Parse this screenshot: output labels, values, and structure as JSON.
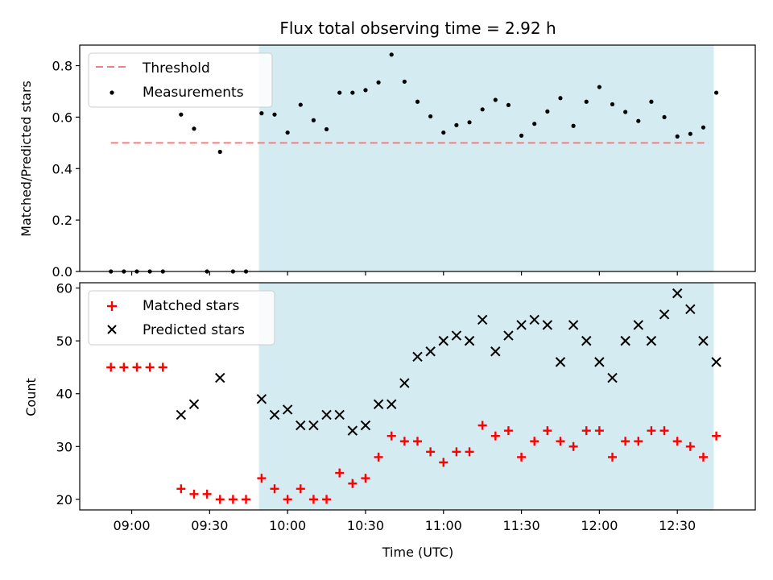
{
  "chart_data": [
    {
      "type": "scatter",
      "title": "Flux total observing time = 2.92 h",
      "xlabel": "",
      "ylabel": "Matched/Predicted stars",
      "ylim": [
        0,
        0.88
      ],
      "yticks": [
        "0.0",
        "0.2",
        "0.4",
        "0.6",
        "0.8"
      ],
      "shaded_interval": {
        "start": "09:49",
        "end": "12:44",
        "color": "#d4ebf1"
      },
      "threshold": {
        "name": "Threshold",
        "value": 0.5,
        "x_start": "08:52",
        "x_end": "12:42",
        "color": "#f08080"
      },
      "legend": {
        "position": "upper-left",
        "entries": [
          "Threshold",
          "Measurements"
        ]
      },
      "series": [
        {
          "name": "Measurements",
          "color": "#000000",
          "points": [
            [
              "08:52",
              0.0
            ],
            [
              "08:57",
              0.0
            ],
            [
              "09:02",
              0.0
            ],
            [
              "09:07",
              0.0
            ],
            [
              "09:12",
              0.0
            ],
            [
              "09:19",
              0.61
            ],
            [
              "09:24",
              0.555
            ],
            [
              "09:29",
              0.0
            ],
            [
              "09:34",
              0.465
            ],
            [
              "09:39",
              0.0
            ],
            [
              "09:44",
              0.0
            ],
            [
              "09:50",
              0.615
            ],
            [
              "09:55",
              0.61
            ],
            [
              "10:00",
              0.54
            ],
            [
              "10:05",
              0.648
            ],
            [
              "10:10",
              0.588
            ],
            [
              "10:15",
              0.553
            ],
            [
              "10:20",
              0.695
            ],
            [
              "10:25",
              0.695
            ],
            [
              "10:30",
              0.705
            ],
            [
              "10:35",
              0.735
            ],
            [
              "10:40",
              0.843
            ],
            [
              "10:45",
              0.738
            ],
            [
              "10:50",
              0.66
            ],
            [
              "10:55",
              0.603
            ],
            [
              "11:00",
              0.54
            ],
            [
              "11:05",
              0.569
            ],
            [
              "11:10",
              0.58
            ],
            [
              "11:15",
              0.63
            ],
            [
              "11:20",
              0.667
            ],
            [
              "11:25",
              0.647
            ],
            [
              "11:30",
              0.528
            ],
            [
              "11:35",
              0.574
            ],
            [
              "11:40",
              0.622
            ],
            [
              "11:45",
              0.674
            ],
            [
              "11:50",
              0.566
            ],
            [
              "11:55",
              0.66
            ],
            [
              "12:00",
              0.717
            ],
            [
              "12:05",
              0.65
            ],
            [
              "12:10",
              0.62
            ],
            [
              "12:15",
              0.585
            ],
            [
              "12:20",
              0.66
            ],
            [
              "12:25",
              0.6
            ],
            [
              "12:30",
              0.525
            ],
            [
              "12:35",
              0.535
            ],
            [
              "12:40",
              0.56
            ],
            [
              "12:45",
              0.695
            ]
          ]
        }
      ]
    },
    {
      "type": "scatter",
      "title": "",
      "xlabel": "Time (UTC)",
      "ylabel": "Count",
      "ylim": [
        18,
        61
      ],
      "yticks": [
        "20",
        "30",
        "40",
        "50",
        "60"
      ],
      "xlim": [
        "08:40",
        "13:00"
      ],
      "xticks": [
        "09:00",
        "09:30",
        "10:00",
        "10:30",
        "11:00",
        "11:30",
        "12:00",
        "12:30"
      ],
      "shaded_interval": {
        "start": "09:49",
        "end": "12:44",
        "color": "#d4ebf1"
      },
      "legend": {
        "position": "upper-left",
        "entries": [
          "Matched stars",
          "Predicted stars"
        ]
      },
      "series": [
        {
          "name": "Matched stars",
          "marker": "plus",
          "color": "#ff0000",
          "points": [
            [
              "08:52",
              45
            ],
            [
              "08:57",
              45
            ],
            [
              "09:02",
              45
            ],
            [
              "09:07",
              45
            ],
            [
              "09:12",
              45
            ],
            [
              "09:19",
              22
            ],
            [
              "09:24",
              21
            ],
            [
              "09:29",
              21
            ],
            [
              "09:34",
              20
            ],
            [
              "09:39",
              20
            ],
            [
              "09:44",
              20
            ],
            [
              "09:50",
              24
            ],
            [
              "09:55",
              22
            ],
            [
              "10:00",
              20
            ],
            [
              "10:05",
              22
            ],
            [
              "10:10",
              20
            ],
            [
              "10:15",
              20
            ],
            [
              "10:20",
              25
            ],
            [
              "10:25",
              23
            ],
            [
              "10:30",
              24
            ],
            [
              "10:35",
              28
            ],
            [
              "10:40",
              32
            ],
            [
              "10:45",
              31
            ],
            [
              "10:50",
              31
            ],
            [
              "10:55",
              29
            ],
            [
              "11:00",
              27
            ],
            [
              "11:05",
              29
            ],
            [
              "11:10",
              29
            ],
            [
              "11:15",
              34
            ],
            [
              "11:20",
              32
            ],
            [
              "11:25",
              33
            ],
            [
              "11:30",
              28
            ],
            [
              "11:35",
              31
            ],
            [
              "11:40",
              33
            ],
            [
              "11:45",
              31
            ],
            [
              "11:50",
              30
            ],
            [
              "11:55",
              33
            ],
            [
              "12:00",
              33
            ],
            [
              "12:05",
              28
            ],
            [
              "12:10",
              31
            ],
            [
              "12:15",
              31
            ],
            [
              "12:20",
              33
            ],
            [
              "12:25",
              33
            ],
            [
              "12:30",
              31
            ],
            [
              "12:35",
              30
            ],
            [
              "12:40",
              28
            ],
            [
              "12:45",
              32
            ]
          ]
        },
        {
          "name": "Predicted stars",
          "marker": "x",
          "color": "#000000",
          "points": [
            [
              "09:19",
              36
            ],
            [
              "09:24",
              38
            ],
            [
              "09:34",
              43
            ],
            [
              "09:50",
              39
            ],
            [
              "09:55",
              36
            ],
            [
              "10:00",
              37
            ],
            [
              "10:05",
              34
            ],
            [
              "10:10",
              34
            ],
            [
              "10:15",
              36
            ],
            [
              "10:20",
              36
            ],
            [
              "10:25",
              33
            ],
            [
              "10:30",
              34
            ],
            [
              "10:35",
              38
            ],
            [
              "10:40",
              38
            ],
            [
              "10:45",
              42
            ],
            [
              "10:50",
              47
            ],
            [
              "10:55",
              48
            ],
            [
              "11:00",
              50
            ],
            [
              "11:05",
              51
            ],
            [
              "11:10",
              50
            ],
            [
              "11:15",
              54
            ],
            [
              "11:20",
              48
            ],
            [
              "11:25",
              51
            ],
            [
              "11:30",
              53
            ],
            [
              "11:35",
              54
            ],
            [
              "11:40",
              53
            ],
            [
              "11:45",
              46
            ],
            [
              "11:50",
              53
            ],
            [
              "11:55",
              50
            ],
            [
              "12:00",
              46
            ],
            [
              "12:05",
              43
            ],
            [
              "12:10",
              50
            ],
            [
              "12:15",
              53
            ],
            [
              "12:20",
              50
            ],
            [
              "12:25",
              55
            ],
            [
              "12:30",
              59
            ],
            [
              "12:35",
              56
            ],
            [
              "12:40",
              50
            ],
            [
              "12:45",
              46
            ]
          ]
        }
      ]
    }
  ]
}
